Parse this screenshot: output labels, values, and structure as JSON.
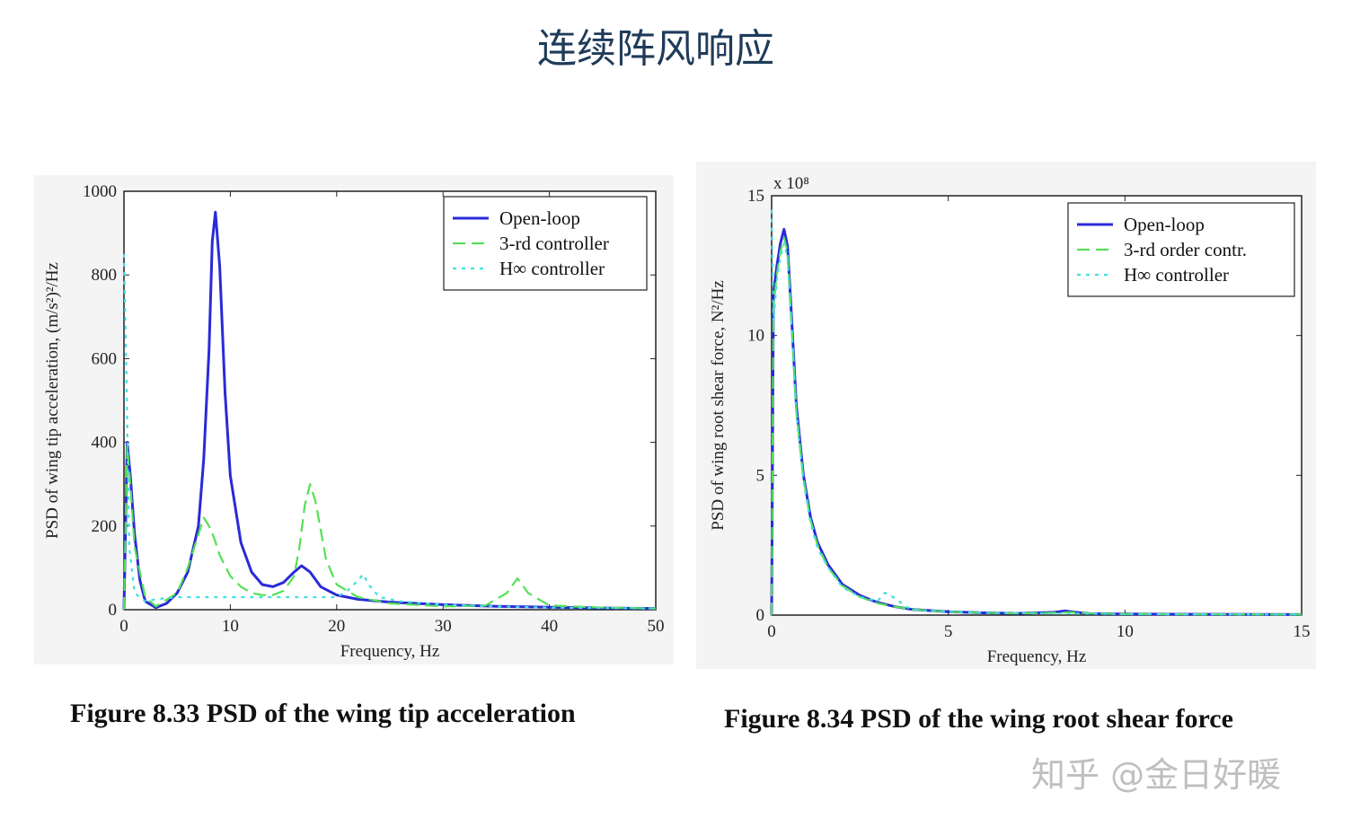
{
  "slide": {
    "title": "连续阵风响应",
    "watermark": "知乎 @金日好暖"
  },
  "chart_data": [
    {
      "type": "line",
      "caption": "Figure 8.33 PSD of the wing tip acceleration",
      "xlabel": "Frequency, Hz",
      "ylabel": "PSD of wing tip acceleration, (m/s²)²/Hz",
      "xlim": [
        0,
        50
      ],
      "ylim": [
        0,
        1000
      ],
      "xticks": [
        "0",
        "10",
        "20",
        "30",
        "40",
        "50"
      ],
      "yticks": [
        "0",
        "200",
        "400",
        "600",
        "800",
        "1000"
      ],
      "legend_position": "top-right",
      "grid": false,
      "series": [
        {
          "name": "Open-loop",
          "color": "#2a2ad8",
          "style": "solid",
          "x": [
            0,
            0.3,
            0.6,
            1,
            1.5,
            2,
            3,
            4,
            5,
            6,
            7,
            7.5,
            8,
            8.3,
            8.6,
            9,
            9.5,
            10,
            11,
            12,
            13,
            14,
            15,
            16,
            16.7,
            17.5,
            18.5,
            20,
            22,
            25,
            30,
            35,
            40,
            45,
            50
          ],
          "y": [
            0,
            400,
            320,
            180,
            70,
            20,
            5,
            15,
            40,
            90,
            200,
            360,
            620,
            880,
            950,
            820,
            520,
            320,
            160,
            90,
            60,
            55,
            65,
            90,
            105,
            90,
            55,
            35,
            25,
            18,
            12,
            8,
            6,
            4,
            3
          ]
        },
        {
          "name": "3-rd controller",
          "color": "#55e055",
          "style": "dashed",
          "x": [
            0,
            0.3,
            0.6,
            1,
            2,
            3,
            5,
            6,
            7,
            7.5,
            8,
            8.5,
            9,
            10,
            11,
            12,
            13,
            14,
            15,
            16,
            16.5,
            17,
            17.5,
            18,
            19,
            20,
            22,
            25,
            30,
            34,
            36,
            37,
            38,
            40,
            45,
            50
          ],
          "y": [
            0,
            390,
            300,
            150,
            30,
            8,
            40,
            100,
            180,
            220,
            200,
            170,
            130,
            80,
            55,
            40,
            35,
            35,
            45,
            80,
            150,
            250,
            300,
            260,
            120,
            60,
            30,
            15,
            8,
            10,
            40,
            75,
            40,
            10,
            5,
            3
          ]
        },
        {
          "name": "H∞ controller",
          "color": "#40e0e0",
          "style": "dotted",
          "x": [
            0,
            0.2,
            0.5,
            1,
            2,
            3,
            5,
            8,
            10,
            15,
            20,
            21,
            22,
            22.5,
            23,
            24,
            26,
            30,
            35,
            40,
            45,
            50
          ],
          "y": [
            850,
            600,
            150,
            40,
            20,
            25,
            30,
            30,
            30,
            30,
            30,
            45,
            70,
            85,
            60,
            30,
            20,
            12,
            8,
            5,
            4,
            3
          ]
        }
      ]
    },
    {
      "type": "line",
      "caption": "Figure 8.34 PSD of the wing root shear force",
      "xlabel": "Frequency, Hz",
      "ylabel": "PSD of wing root shear force, N²/Hz",
      "y_multiplier": "x 10⁸",
      "xlim": [
        0,
        15
      ],
      "ylim": [
        0,
        15
      ],
      "xticks": [
        "0",
        "5",
        "10",
        "15"
      ],
      "yticks": [
        "0",
        "5",
        "10",
        "15"
      ],
      "legend_position": "top-right",
      "grid": false,
      "series": [
        {
          "name": "Open-loop",
          "color": "#2a2ad8",
          "style": "solid",
          "x": [
            0,
            0.05,
            0.15,
            0.25,
            0.35,
            0.45,
            0.55,
            0.7,
            0.9,
            1.1,
            1.3,
            1.6,
            2,
            2.5,
            3,
            3.5,
            4,
            5,
            6,
            7,
            8,
            8.3,
            8.6,
            9,
            10,
            12,
            15
          ],
          "y": [
            0,
            11.5,
            12.5,
            13.3,
            13.8,
            13.2,
            11,
            7.5,
            5,
            3.5,
            2.6,
            1.8,
            1.1,
            0.7,
            0.45,
            0.3,
            0.2,
            0.12,
            0.08,
            0.06,
            0.1,
            0.15,
            0.1,
            0.05,
            0.04,
            0.03,
            0.02
          ]
        },
        {
          "name": "3-rd order contr.",
          "color": "#55e055",
          "style": "dashed",
          "x": [
            0,
            0.05,
            0.15,
            0.25,
            0.35,
            0.45,
            0.55,
            0.7,
            0.9,
            1.1,
            1.3,
            1.6,
            2,
            2.5,
            3,
            3.5,
            4,
            5,
            6,
            7,
            8,
            8.5,
            9,
            10,
            12,
            15
          ],
          "y": [
            0,
            11,
            12.2,
            13.0,
            13.5,
            13.0,
            10.8,
            7.3,
            4.9,
            3.4,
            2.5,
            1.7,
            1.05,
            0.65,
            0.42,
            0.3,
            0.2,
            0.12,
            0.08,
            0.06,
            0.08,
            0.1,
            0.06,
            0.04,
            0.03,
            0.02
          ]
        },
        {
          "name": "H∞ controller",
          "color": "#40e0e0",
          "style": "dotted",
          "x": [
            0,
            0.05,
            0.15,
            0.25,
            0.35,
            0.45,
            0.55,
            0.7,
            0.9,
            1.1,
            1.3,
            1.6,
            2,
            2.5,
            3,
            3.2,
            3.5,
            3.8,
            4,
            5,
            6,
            8,
            10,
            12,
            15
          ],
          "y": [
            14.5,
            10.5,
            12.0,
            12.8,
            13.3,
            12.8,
            10.6,
            7.2,
            4.8,
            3.3,
            2.4,
            1.7,
            1.0,
            0.65,
            0.5,
            0.8,
            0.6,
            0.3,
            0.2,
            0.12,
            0.08,
            0.06,
            0.04,
            0.03,
            0.02
          ]
        }
      ]
    }
  ]
}
